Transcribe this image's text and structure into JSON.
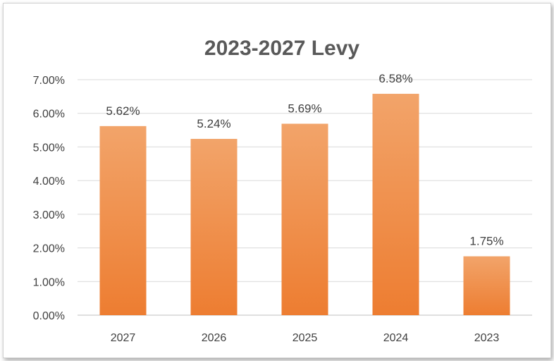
{
  "chart_data": {
    "type": "bar",
    "title": "2023-2027 Levy",
    "categories": [
      "2027",
      "2026",
      "2025",
      "2024",
      "2023"
    ],
    "values": [
      5.62,
      5.24,
      5.69,
      6.58,
      1.75
    ],
    "data_labels": [
      "5.62%",
      "5.24%",
      "5.69%",
      "6.58%",
      "1.75%"
    ],
    "y_ticks": [
      "0.00%",
      "1.00%",
      "2.00%",
      "3.00%",
      "4.00%",
      "5.00%",
      "6.00%",
      "7.00%"
    ],
    "ylim": [
      0,
      7
    ],
    "xlabel": "",
    "ylabel": "",
    "grid": true,
    "legend": "none",
    "bar_color": "#ED7D31",
    "bar_color_light": "#F2A46A"
  }
}
